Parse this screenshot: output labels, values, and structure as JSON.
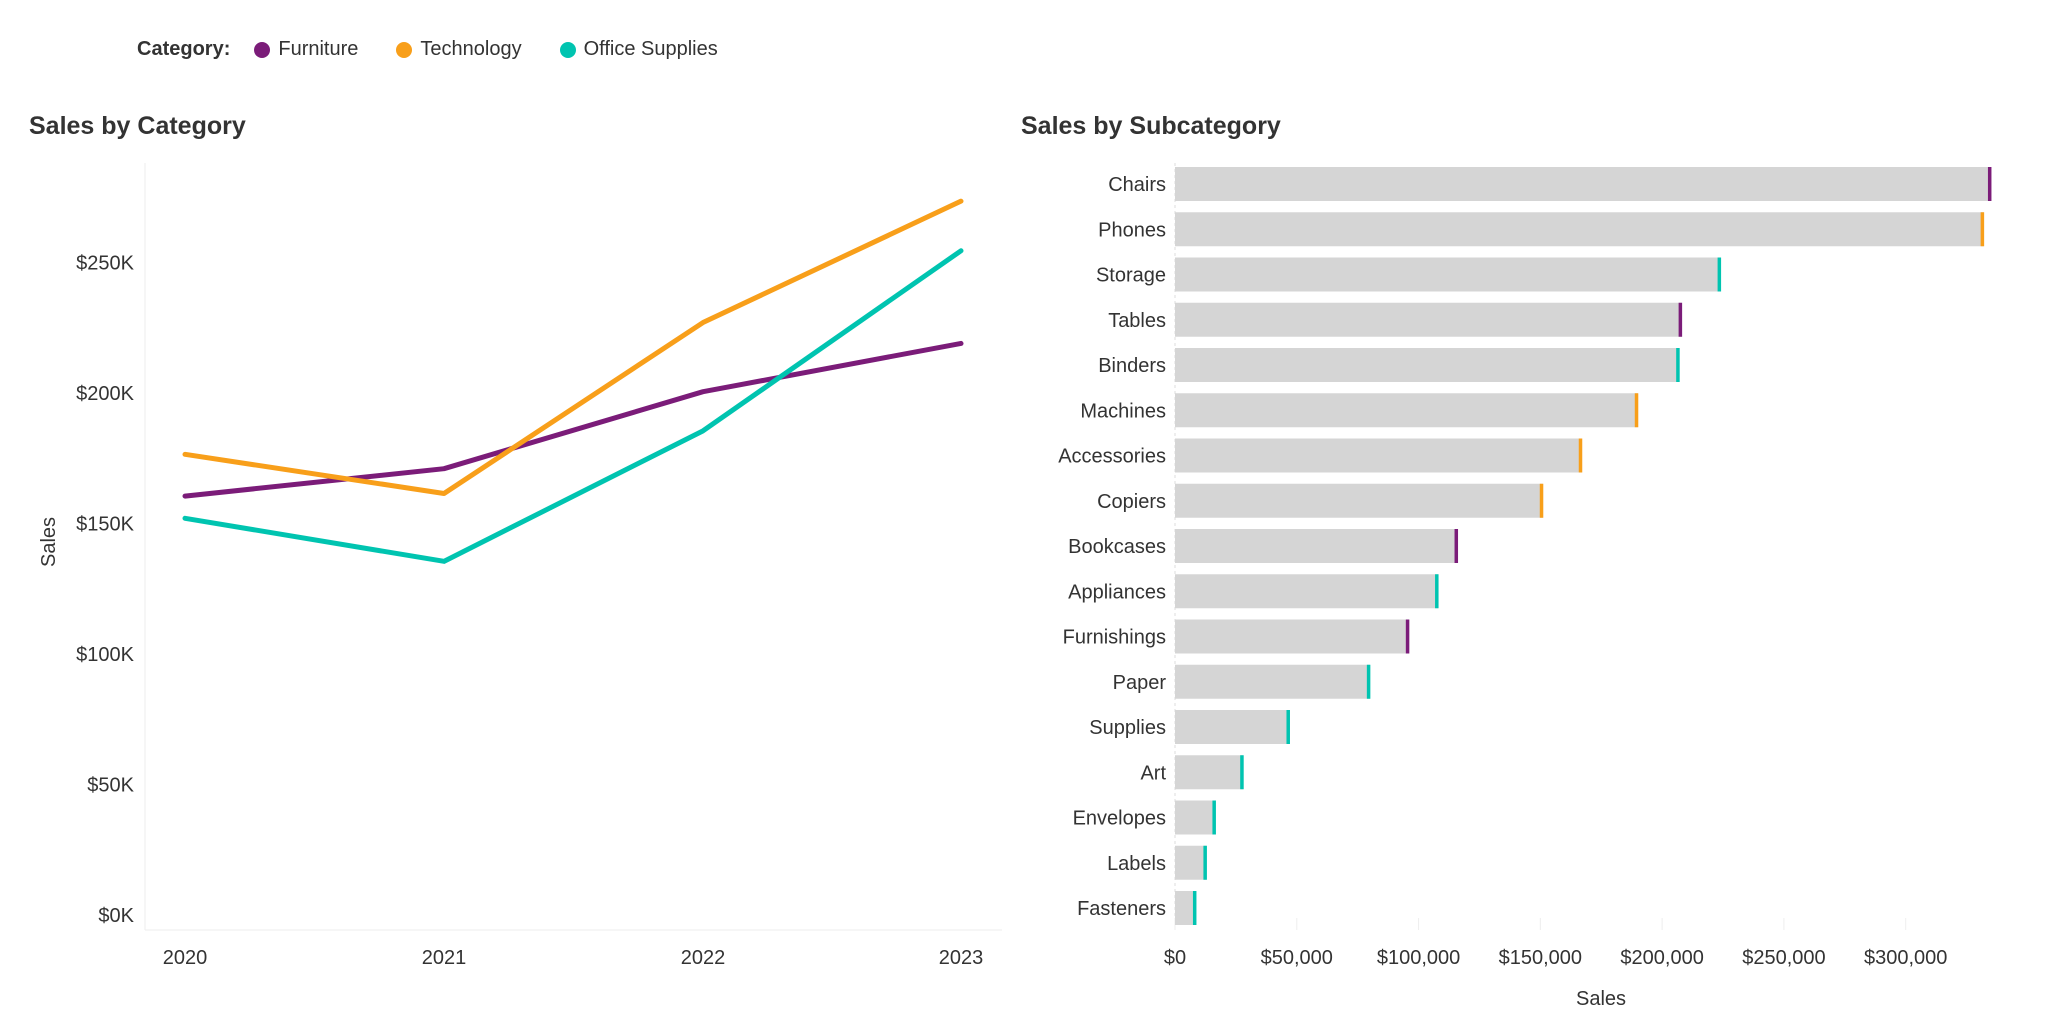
{
  "legend": {
    "label": "Category:",
    "items": [
      {
        "name": "Furniture",
        "color": "#7B1C79"
      },
      {
        "name": "Technology",
        "color": "#F89F1A"
      },
      {
        "name": "Office Supplies",
        "color": "#00C4B0"
      }
    ]
  },
  "chart_data": [
    {
      "type": "line",
      "title": "Sales by Category",
      "xlabel": "",
      "ylabel": "Sales",
      "categories": [
        "2020",
        "2021",
        "2022",
        "2023"
      ],
      "yticks": [
        "$0K",
        "$50K",
        "$100K",
        "$150K",
        "$200K",
        "$250K"
      ],
      "ylim": [
        0,
        285000
      ],
      "grid": false,
      "legend": "top",
      "series": [
        {
          "name": "Furniture",
          "color": "#7B1C79",
          "values": [
            160500,
            171000,
            200500,
            219000
          ]
        },
        {
          "name": "Technology",
          "color": "#F89F1A",
          "values": [
            176500,
            161500,
            227000,
            273500
          ]
        },
        {
          "name": "Office Supplies",
          "color": "#00C4B0",
          "values": [
            152000,
            135500,
            185500,
            254500
          ]
        }
      ]
    },
    {
      "type": "bar",
      "orientation": "horizontal",
      "title": "Sales by Subcategory",
      "xlabel": "Sales",
      "ylabel": "",
      "xticks": [
        "$0",
        "$50,000",
        "$100,000",
        "$150,000",
        "$200,000",
        "$250,000",
        "$300,000"
      ],
      "xlim": [
        0,
        349000
      ],
      "bar_color": "#D5D5D5",
      "categories": [
        "Chairs",
        "Phones",
        "Storage",
        "Tables",
        "Binders",
        "Machines",
        "Accessories",
        "Copiers",
        "Bookcases",
        "Appliances",
        "Furnishings",
        "Paper",
        "Supplies",
        "Art",
        "Envelopes",
        "Labels",
        "Fasteners"
      ],
      "values": [
        335000,
        332000,
        224000,
        208000,
        207000,
        190000,
        167000,
        151000,
        116000,
        108000,
        96000,
        80000,
        47000,
        28000,
        16600,
        12900,
        8600
      ],
      "category_of": [
        "Furniture",
        "Technology",
        "Office Supplies",
        "Furniture",
        "Office Supplies",
        "Technology",
        "Technology",
        "Technology",
        "Furniture",
        "Office Supplies",
        "Furniture",
        "Office Supplies",
        "Office Supplies",
        "Office Supplies",
        "Office Supplies",
        "Office Supplies",
        "Office Supplies"
      ]
    }
  ]
}
